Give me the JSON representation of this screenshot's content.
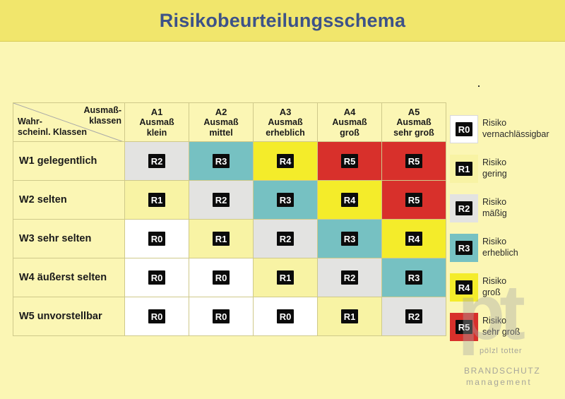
{
  "title": "Risikobeurteilungsschema",
  "colors": {
    "R0": "#ffffff",
    "R1": "#f8f3a4",
    "R2": "#e3e3e1",
    "R3": "#76c1c2",
    "R4": "#f4ec2a",
    "R5": "#d8302b"
  },
  "corner": {
    "top_line1": "Ausmaß-",
    "top_line2": "klassen",
    "bottom_line1": "Wahr-",
    "bottom_line2": "scheinl. Klassen"
  },
  "columns": [
    {
      "code": "A1",
      "line1": "Ausmaß",
      "line2": "klein"
    },
    {
      "code": "A2",
      "line1": "Ausmaß",
      "line2": "mittel"
    },
    {
      "code": "A3",
      "line1": "Ausmaß",
      "line2": "erheblich"
    },
    {
      "code": "A4",
      "line1": "Ausmaß",
      "line2": "groß"
    },
    {
      "code": "A5",
      "line1": "Ausmaß",
      "line2": "sehr groß"
    }
  ],
  "rows": [
    {
      "label": "W1 gelegentlich",
      "cells": [
        "R2",
        "R3",
        "R4",
        "R5",
        "R5"
      ]
    },
    {
      "label": "W2 selten",
      "cells": [
        "R1",
        "R2",
        "R3",
        "R4",
        "R5"
      ]
    },
    {
      "label": "W3 sehr selten",
      "cells": [
        "R0",
        "R1",
        "R2",
        "R3",
        "R4"
      ]
    },
    {
      "label": "W4 äußerst selten",
      "cells": [
        "R0",
        "R0",
        "R1",
        "R2",
        "R3"
      ]
    },
    {
      "label": "W5 unvorstellbar",
      "cells": [
        "R0",
        "R0",
        "R0",
        "R1",
        "R2"
      ]
    }
  ],
  "legend": [
    {
      "code": "R0",
      "line1": "Risiko",
      "line2": "vernachlässigbar"
    },
    {
      "code": "R1",
      "line1": "Risiko",
      "line2": "gering"
    },
    {
      "code": "R2",
      "line1": "Risiko",
      "line2": "mäßig"
    },
    {
      "code": "R3",
      "line1": "Risiko",
      "line2": "erheblich"
    },
    {
      "code": "R4",
      "line1": "Risiko",
      "line2": "groß"
    },
    {
      "code": "R5",
      "line1": "Risiko",
      "line2": "sehr groß"
    }
  ],
  "watermark": {
    "letters": "pt",
    "name": "pölzl totter",
    "brand": "BRANDSCHUTZ",
    "sub": "management"
  }
}
